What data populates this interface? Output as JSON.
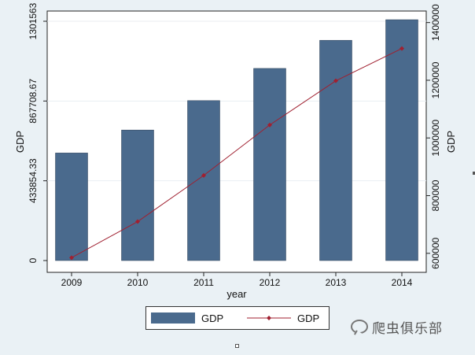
{
  "chart_data": {
    "type": "bar+line",
    "xlabel": "year",
    "ylabel_left": "GDP",
    "ylabel_right": "GDP",
    "categories": [
      "2009",
      "2010",
      "2011",
      "2012",
      "2013",
      "2014"
    ],
    "left_axis": {
      "ylim": [
        0,
        1301563
      ],
      "ticks": [
        0,
        433854.33,
        867708.67,
        1301563
      ],
      "tick_labels": [
        "0",
        "433854.33",
        "867708.67",
        "1301563"
      ]
    },
    "right_axis": {
      "ylim": [
        575000,
        1440000
      ],
      "ticks": [
        600000,
        800000,
        1000000,
        1200000,
        1400000
      ],
      "tick_labels": [
        "600000",
        "800000",
        "1000000",
        "1200000",
        "1400000"
      ]
    },
    "series": [
      {
        "name": "GDP",
        "kind": "bar",
        "axis": "left",
        "color": "#4a6a8d",
        "values": [
          585000,
          710000,
          870000,
          1045000,
          1198000,
          1310000
        ]
      },
      {
        "name": "GDP",
        "kind": "line",
        "axis": "right",
        "color": "#a02030",
        "values": [
          585000,
          710000,
          870000,
          1045000,
          1198000,
          1310000
        ]
      }
    ],
    "grid": "horizontal",
    "legend": "bottom"
  },
  "watermark": {
    "text": "爬虫俱乐部"
  }
}
